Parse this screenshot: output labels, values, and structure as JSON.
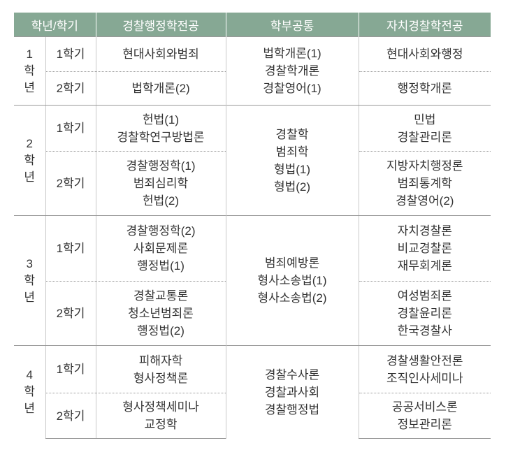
{
  "header": [
    "학년/학기",
    "경찰행정학전공",
    "학부공통",
    "자치경찰학전공"
  ],
  "years": [
    {
      "year": [
        "1",
        "학",
        "년"
      ],
      "common": [
        "법학개론(1)",
        "경찰학개론",
        "경찰영어(1)"
      ],
      "semesters": [
        {
          "term": "1학기",
          "admin": [
            "현대사회와범죄"
          ],
          "local": [
            "현대사회와행정"
          ]
        },
        {
          "term": "2학기",
          "admin": [
            "법학개론(2)"
          ],
          "local": [
            "행정학개론"
          ]
        }
      ]
    },
    {
      "year": [
        "2",
        "학",
        "년"
      ],
      "common": [
        "경찰학",
        "범죄학",
        "형법(1)",
        "형법(2)"
      ],
      "semesters": [
        {
          "term": "1학기",
          "admin": [
            "헌법(1)",
            "경찰학연구방법론"
          ],
          "local": [
            "민법",
            "경찰관리론"
          ]
        },
        {
          "term": "2학기",
          "admin": [
            "경찰행정학(1)",
            "범죄심리학",
            "헌법(2)"
          ],
          "local": [
            "지방자치행정론",
            "범죄통계학",
            "경찰영어(2)"
          ]
        }
      ]
    },
    {
      "year": [
        "3",
        "학",
        "년"
      ],
      "common": [
        "범죄예방론",
        "형사소송법(1)",
        "형사소송법(2)"
      ],
      "semesters": [
        {
          "term": "1학기",
          "admin": [
            "경찰행정학(2)",
            "사회문제론",
            "행정법(1)"
          ],
          "local": [
            "자치경찰론",
            "비교경찰론",
            "재무회계론"
          ]
        },
        {
          "term": "2학기",
          "admin": [
            "경찰교통론",
            "청소년범죄론",
            "행정법(2)"
          ],
          "local": [
            "여성범죄론",
            "경찰윤리론",
            "한국경찰사"
          ]
        }
      ]
    },
    {
      "year": [
        "4",
        "학",
        "년"
      ],
      "common": [
        "경찰수사론",
        "경찰과사회",
        "경찰행정법"
      ],
      "semesters": [
        {
          "term": "1학기",
          "admin": [
            "피해자학",
            "형사정책론"
          ],
          "local": [
            "경찰생활안전론",
            "조직인사세미나"
          ]
        },
        {
          "term": "2학기",
          "admin": [
            "형사정책세미나",
            "교정학"
          ],
          "local": [
            "공공서비스론",
            "정보관리론"
          ]
        }
      ]
    }
  ]
}
